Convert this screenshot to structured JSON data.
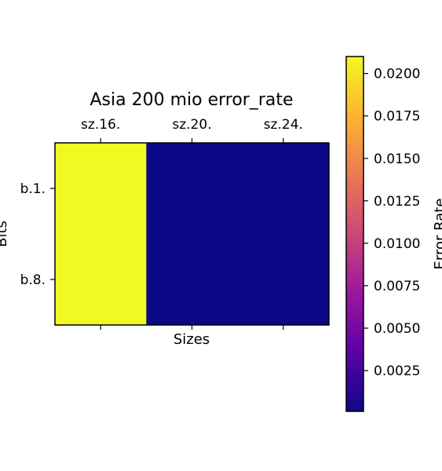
{
  "chart_data": {
    "type": "heatmap",
    "title": "Asia 200 mio error_rate",
    "xlabel": "Sizes",
    "ylabel": "Bits",
    "x_categories": [
      "sz.16.",
      "sz.20.",
      "sz.24."
    ],
    "y_categories": [
      "b.1.",
      "b.8."
    ],
    "values": [
      [
        0.021,
        0.0001,
        0.0001
      ],
      [
        0.021,
        0.0001,
        0.0001
      ]
    ],
    "x_tick_position": "top",
    "colormap": "plasma",
    "colormap_stops": [
      "#0d0887",
      "#5c01a6",
      "#9c179e",
      "#cc4778",
      "#ed7953",
      "#fdb42f",
      "#f0f921"
    ],
    "colorbar": {
      "min": 0.0001,
      "max": 0.021,
      "ticks": [
        0.0025,
        0.005,
        0.0075,
        0.01,
        0.0125,
        0.015,
        0.0175,
        0.02
      ],
      "tick_labels": [
        "0.0025",
        "0.0050",
        "0.0075",
        "0.0100",
        "0.0125",
        "0.0150",
        "0.0175",
        "0.0200"
      ],
      "label": "Error Rate"
    },
    "grid": false
  }
}
